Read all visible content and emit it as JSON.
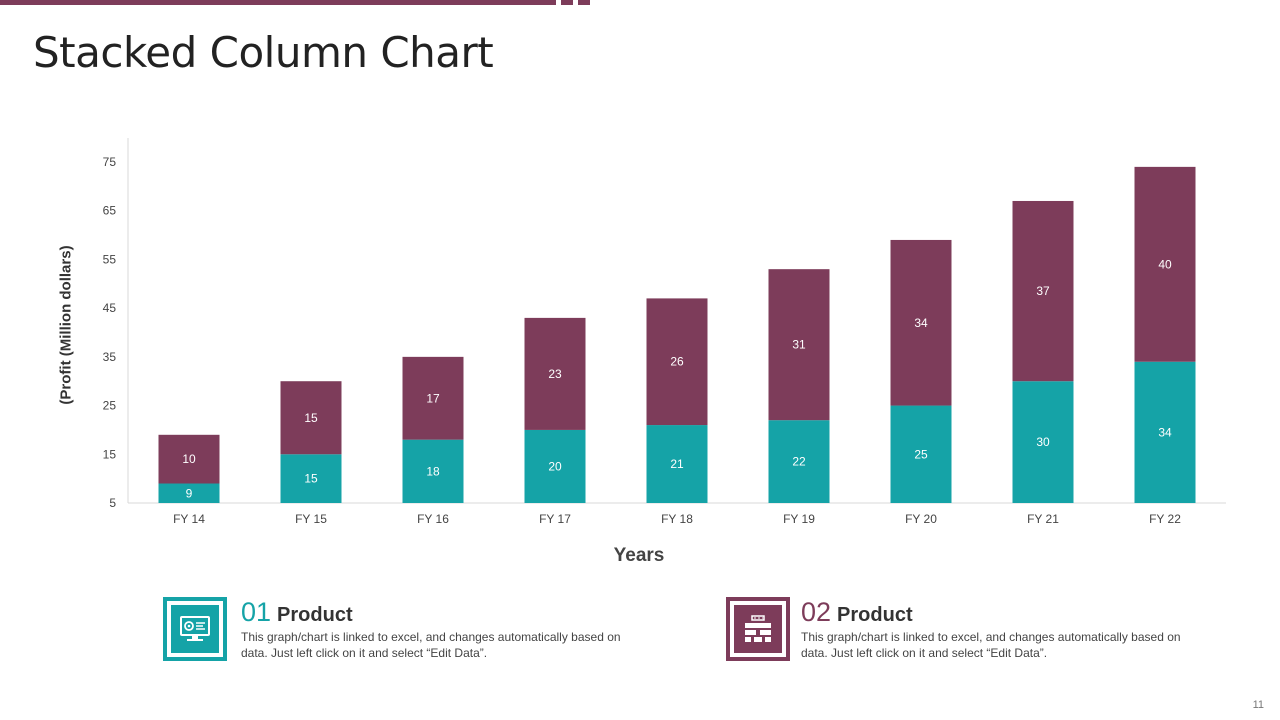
{
  "slide": {
    "title": "Stacked Column Chart",
    "page_number": "11"
  },
  "colors": {
    "accent_maroon": "#7d3c5a",
    "accent_teal": "#15a3a7"
  },
  "chart_data": {
    "type": "bar",
    "stacked": true,
    "title": "",
    "xlabel": "Years",
    "ylabel": "(Profit  (Million dollars)",
    "ylim": [
      5,
      75
    ],
    "yticks": [
      5,
      15,
      25,
      35,
      45,
      55,
      65,
      75
    ],
    "categories": [
      "FY 14",
      "FY 15",
      "FY 16",
      "FY 17",
      "FY 18",
      "FY 19",
      "FY 20",
      "FY 21",
      "FY 22"
    ],
    "series": [
      {
        "color": "#15a3a7",
        "values": [
          9,
          15,
          18,
          20,
          21,
          22,
          25,
          30,
          34
        ]
      },
      {
        "color": "#7d3c5a",
        "values": [
          10,
          15,
          17,
          23,
          26,
          31,
          34,
          37,
          40
        ]
      }
    ],
    "grid": false,
    "legend": "none"
  },
  "cards": [
    {
      "number": "01",
      "heading": "Product",
      "description": "This graph/chart is linked to excel, and changes automatically based on data. Just left click on it and select “Edit Data”.",
      "icon": "monitor-settings-icon"
    },
    {
      "number": "02",
      "heading": "Product",
      "description": "This graph/chart is linked to excel, and changes automatically based on data. Just left click on it and select “Edit Data”.",
      "icon": "brick-wall-icon"
    }
  ]
}
